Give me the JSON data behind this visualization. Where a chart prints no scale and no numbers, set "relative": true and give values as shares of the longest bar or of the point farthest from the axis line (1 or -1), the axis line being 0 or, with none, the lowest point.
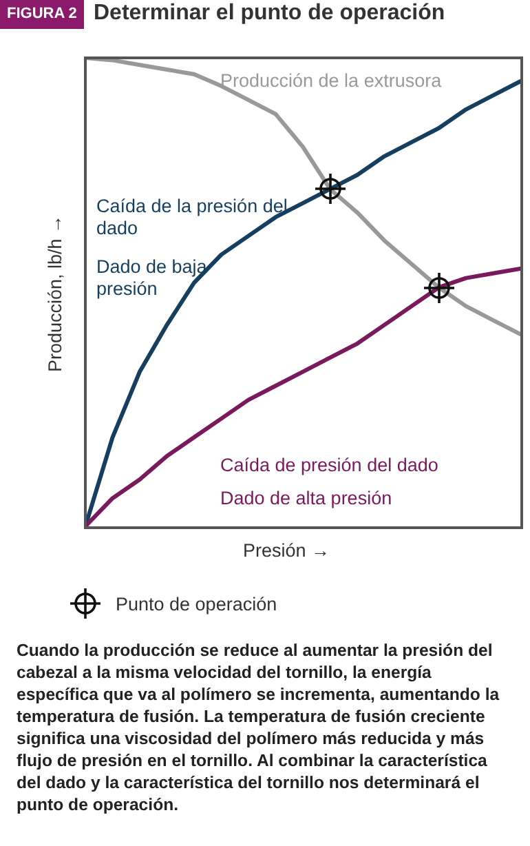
{
  "chart_data": {
    "type": "line",
    "title": "Determinar el punto de operación",
    "xlabel": "Presión →",
    "ylabel": "Producción, lb/h →",
    "relative": true,
    "grid": false,
    "categories": [
      null,
      null,
      null,
      null,
      null,
      null,
      null,
      null,
      null,
      null,
      null,
      null,
      null,
      null,
      null,
      null,
      null
    ],
    "series": [
      {
        "name": "Producción de la extrusora",
        "color": "#999999",
        "values": [
          1,
          0.995,
          0.985,
          0.975,
          0.965,
          0.94,
          0.91,
          0.88,
          0.81,
          0.72,
          0.67,
          0.61,
          0.56,
          0.51,
          0.47,
          0.44,
          0.41
        ]
      },
      {
        "name": "Caída de la presión del dado",
        "color": "#163f5f",
        "values": [
          0,
          0.19,
          0.33,
          0.43,
          0.52,
          0.58,
          0.62,
          0.66,
          0.69,
          0.72,
          0.75,
          0.79,
          0.82,
          0.85,
          0.89,
          0.92,
          0.95
        ]
      },
      {
        "name": "Caída de presión del dado",
        "color": "#7a1a5e",
        "values": [
          0,
          0.06,
          0.1,
          0.15,
          0.19,
          0.23,
          0.27,
          0.3,
          0.33,
          0.36,
          0.39,
          0.43,
          0.47,
          0.51,
          0.53,
          0.54,
          0.55
        ]
      }
    ],
    "annotations": [
      "FIGURA 2",
      "Dado de baja presión",
      "Dado de alta presión",
      "Punto de operación",
      "Cuando la producción se reduce al aumentar la presión del cabezal a la misma velocidad del tornillo, la energía específica que va al polímero se incrementa, aumentando la temperatura de fusión. La temperatura de fusión creciente significa una viscosidad del polímero más reducida y más flujo de presión en el tornillo. Al combinar la característica del dado y la característica del tornillo nos determinará el punto de operación."
    ]
  }
}
